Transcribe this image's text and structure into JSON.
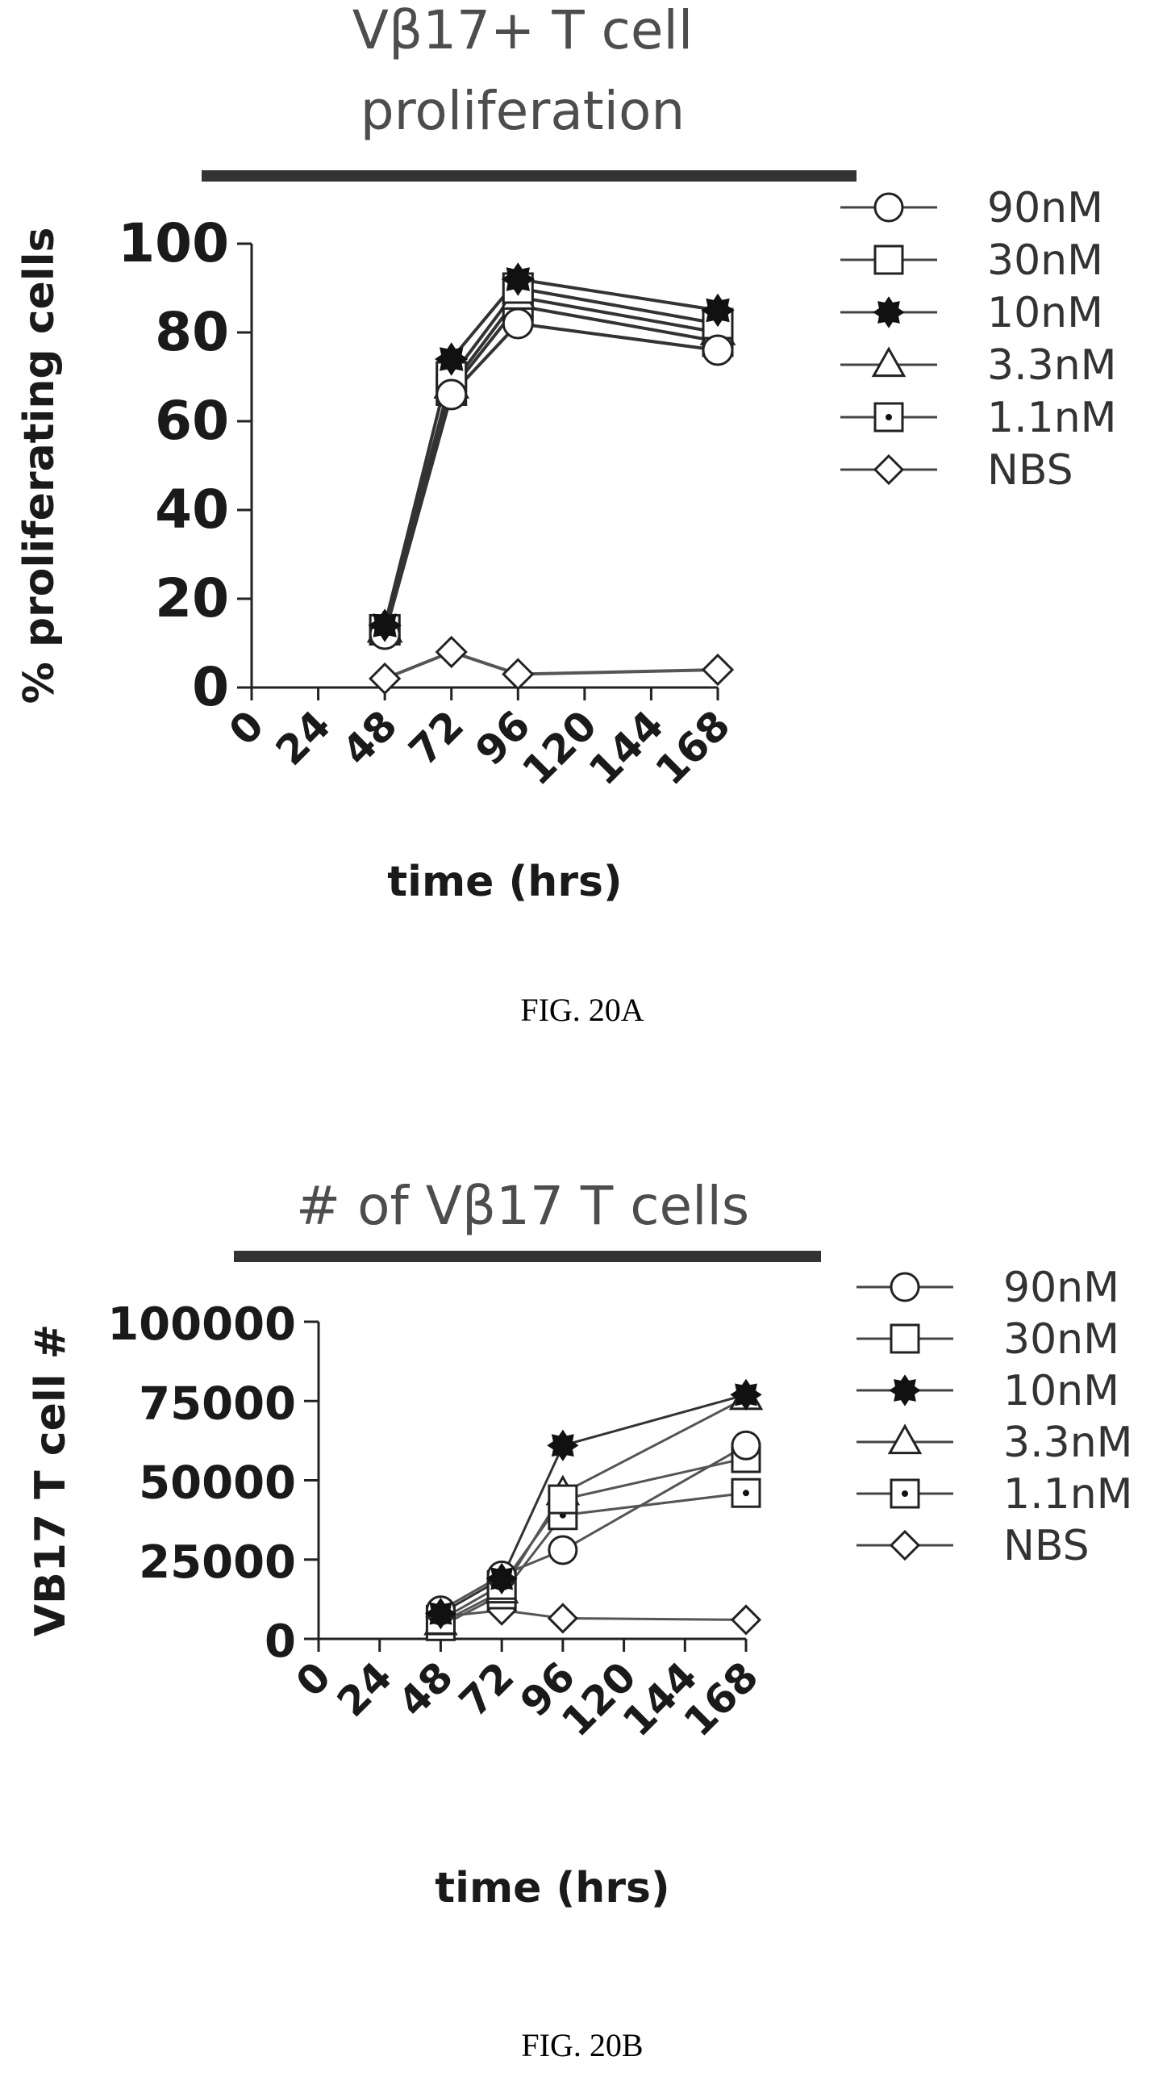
{
  "chart_data": [
    {
      "type": "line",
      "title": "Vβ17+ T cell proliferation",
      "title_lines": [
        "Vβ17+ T cell",
        "proliferation"
      ],
      "xlabel": "time (hrs)",
      "ylabel": "% proliferating cells",
      "x_ticks": [
        "0",
        "24",
        "48",
        "72",
        "96",
        "120",
        "144",
        "168"
      ],
      "y_ticks": [
        "0",
        "20",
        "40",
        "60",
        "80",
        "100"
      ],
      "xlim": [
        0,
        168
      ],
      "ylim": [
        0,
        100
      ],
      "legend_position": "right",
      "caption": "FIG. 20A",
      "series": [
        {
          "name": "90nM",
          "marker": "circle",
          "x": [
            48,
            72,
            96,
            168
          ],
          "y": [
            12,
            66,
            82,
            76
          ]
        },
        {
          "name": "30nM",
          "marker": "square",
          "x": [
            48,
            72,
            96,
            168
          ],
          "y": [
            13,
            70,
            90,
            82
          ]
        },
        {
          "name": "10nM",
          "marker": "star",
          "x": [
            48,
            72,
            96,
            168
          ],
          "y": [
            14,
            74,
            92,
            85
          ]
        },
        {
          "name": "3.3nM",
          "marker": "triangle",
          "x": [
            48,
            72,
            96,
            168
          ],
          "y": [
            13,
            68,
            88,
            80
          ]
        },
        {
          "name": "1.1nM",
          "marker": "square-dot",
          "x": [
            48,
            72,
            96,
            168
          ],
          "y": [
            13,
            67,
            86,
            78
          ]
        },
        {
          "name": "NBS",
          "marker": "diamond",
          "x": [
            48,
            72,
            96,
            168
          ],
          "y": [
            2,
            8,
            3,
            4
          ]
        }
      ]
    },
    {
      "type": "line",
      "title": "# of Vβ17 T cells",
      "title_lines": [
        "# of Vβ17 T cells"
      ],
      "xlabel": "time (hrs)",
      "ylabel": "VB17 T cell #",
      "x_ticks": [
        "0",
        "24",
        "48",
        "72",
        "96",
        "120",
        "144",
        "168"
      ],
      "y_ticks": [
        "0",
        "25000",
        "50000",
        "75000",
        "100000"
      ],
      "xlim": [
        0,
        168
      ],
      "ylim": [
        0,
        100000
      ],
      "legend_position": "right",
      "caption": "FIG. 20B",
      "series": [
        {
          "name": "90nM",
          "marker": "circle",
          "x": [
            48,
            72,
            96,
            168
          ],
          "y": [
            9000,
            20000,
            28000,
            61000
          ]
        },
        {
          "name": "30nM",
          "marker": "square",
          "x": [
            48,
            72,
            96,
            168
          ],
          "y": [
            6000,
            17000,
            44000,
            57000
          ]
        },
        {
          "name": "10nM",
          "marker": "star",
          "x": [
            48,
            72,
            96,
            168
          ],
          "y": [
            8000,
            19000,
            61000,
            77000
          ]
        },
        {
          "name": "3.3nM",
          "marker": "triangle",
          "x": [
            48,
            72,
            96,
            168
          ],
          "y": [
            5000,
            15000,
            46000,
            76000
          ]
        },
        {
          "name": "1.1nM",
          "marker": "square-dot",
          "x": [
            48,
            72,
            96,
            168
          ],
          "y": [
            4000,
            14000,
            39000,
            46000
          ]
        },
        {
          "name": "NBS",
          "marker": "diamond",
          "x": [
            48,
            72,
            96,
            168
          ],
          "y": [
            7000,
            9000,
            6500,
            6000
          ]
        }
      ]
    }
  ]
}
